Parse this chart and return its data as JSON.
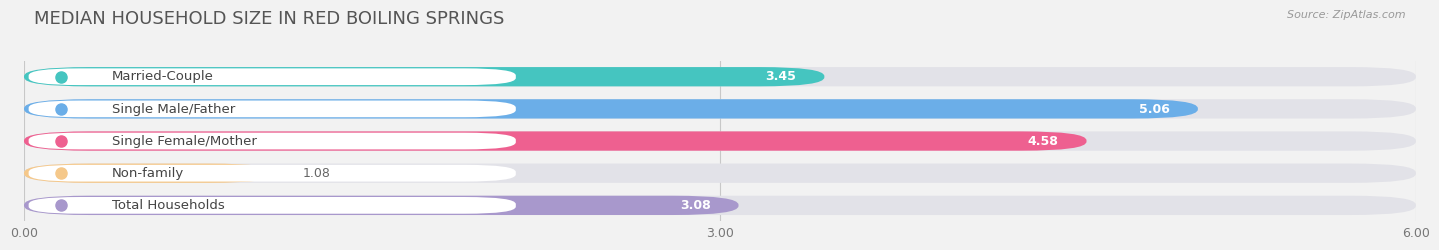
{
  "title": "MEDIAN HOUSEHOLD SIZE IN RED BOILING SPRINGS",
  "source": "Source: ZipAtlas.com",
  "categories": [
    "Married-Couple",
    "Single Male/Father",
    "Single Female/Mother",
    "Non-family",
    "Total Households"
  ],
  "values": [
    3.45,
    5.06,
    4.58,
    1.08,
    3.08
  ],
  "bar_colors": [
    "#45C5C0",
    "#6BAEE8",
    "#EE6090",
    "#F5C88A",
    "#A898CC"
  ],
  "label_dot_colors": [
    "#45C5C0",
    "#6BAEE8",
    "#EE6090",
    "#F5C88A",
    "#A898CC"
  ],
  "xlim": [
    0,
    6.0
  ],
  "xtick_labels": [
    "0.00",
    "3.00",
    "6.00"
  ],
  "background_color": "#f2f2f2",
  "bar_bg_color": "#e2e2e8",
  "title_fontsize": 13,
  "label_fontsize": 9.5,
  "value_fontsize": 9
}
